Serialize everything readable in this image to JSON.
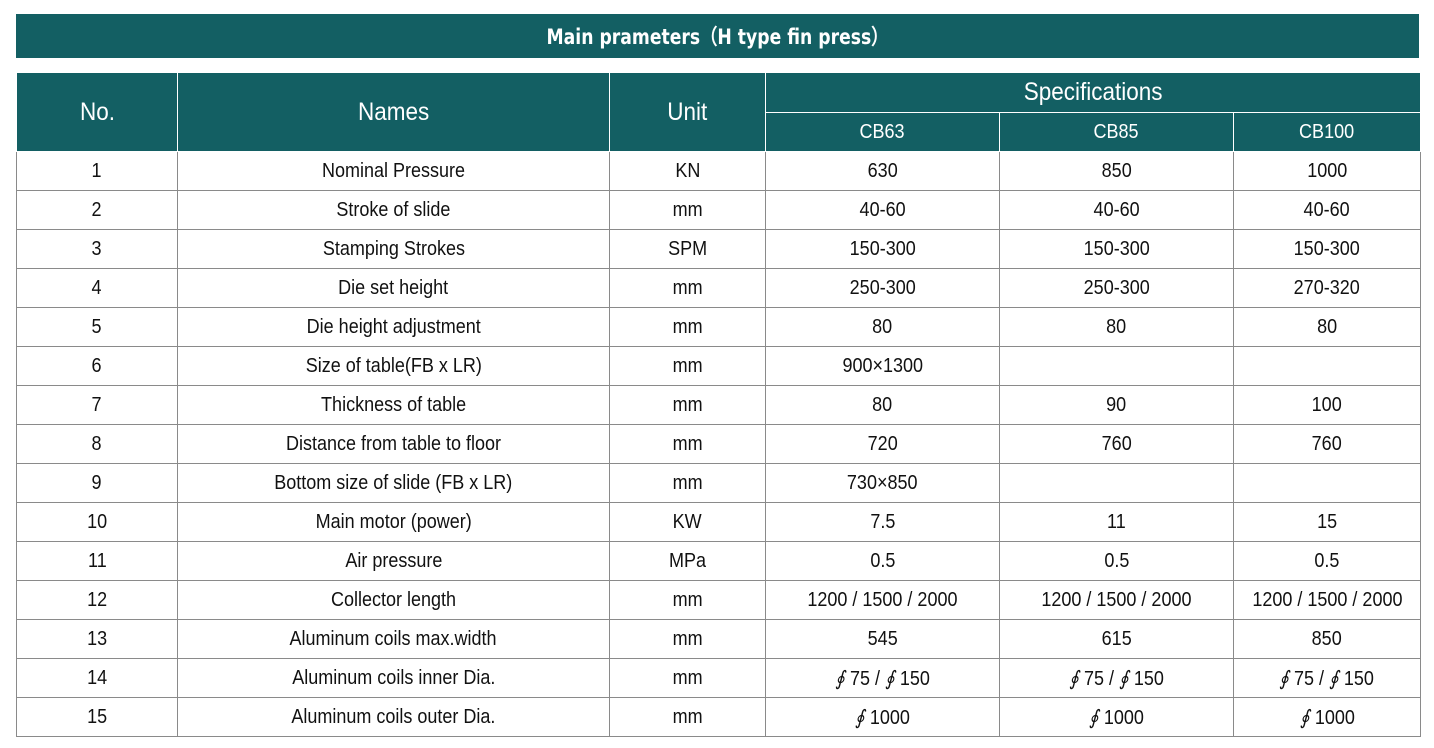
{
  "title": "Main prameters（H type fin press）",
  "headers": {
    "no": "No.",
    "names": "Names",
    "unit": "Unit",
    "specifications": "Specifications",
    "models": [
      "CB63",
      "CB85",
      "CB100"
    ]
  },
  "rows": [
    {
      "no": "1",
      "name": "Nominal Pressure",
      "unit": "KN",
      "v": [
        "630",
        "850",
        "1000"
      ]
    },
    {
      "no": "2",
      "name": "Stroke of slide",
      "unit": "mm",
      "v": [
        "40-60",
        "40-60",
        "40-60"
      ]
    },
    {
      "no": "3",
      "name": "Stamping Strokes",
      "unit": "SPM",
      "v": [
        "150-300",
        "150-300",
        "150-300"
      ]
    },
    {
      "no": "4",
      "name": "Die set height",
      "unit": "mm",
      "v": [
        "250-300",
        "250-300",
        "270-320"
      ]
    },
    {
      "no": "5",
      "name": "Die height adjustment",
      "unit": "mm",
      "v": [
        "80",
        "80",
        "80"
      ]
    },
    {
      "no": "6",
      "name": "Size of table(FB x LR)",
      "unit": "mm",
      "v": [
        "900×1300",
        "",
        ""
      ]
    },
    {
      "no": "7",
      "name": "Thickness of table",
      "unit": "mm",
      "v": [
        "80",
        "90",
        "100"
      ]
    },
    {
      "no": "8",
      "name": "Distance from table to floor",
      "unit": "mm",
      "v": [
        "720",
        "760",
        "760"
      ]
    },
    {
      "no": "9",
      "name": "Bottom size of slide (FB x LR)",
      "unit": "mm",
      "v": [
        "730×850",
        "",
        ""
      ]
    },
    {
      "no": "10",
      "name": "Main motor (power)",
      "unit": "KW",
      "v": [
        "7.5",
        "11",
        "15"
      ]
    },
    {
      "no": "11",
      "name": "Air pressure",
      "unit": "MPa",
      "v": [
        "0.5",
        "0.5",
        "0.5"
      ]
    },
    {
      "no": "12",
      "name": "Collector length",
      "unit": "mm",
      "v": [
        "1200 / 1500 / 2000",
        "1200 / 1500 / 2000",
        "1200 / 1500 / 2000"
      ]
    },
    {
      "no": "13",
      "name": "Aluminum coils max.width",
      "unit": "mm",
      "v": [
        "545",
        "615",
        "850"
      ]
    },
    {
      "no": "14",
      "name": "Aluminum coils inner Dia.",
      "unit": "mm",
      "v": [
        "∮ 75 / ∮ 150",
        "∮ 75 / ∮ 150",
        "∮ 75 / ∮ 150"
      ]
    },
    {
      "no": "15",
      "name": "Aluminum coils outer Dia.",
      "unit": "mm",
      "v": [
        "∮ 1000",
        "∮ 1000",
        "∮ 1000"
      ]
    }
  ],
  "colors": {
    "header_bg": "#135f63",
    "header_text": "#ffffff",
    "grid": "#8a8a8a"
  }
}
